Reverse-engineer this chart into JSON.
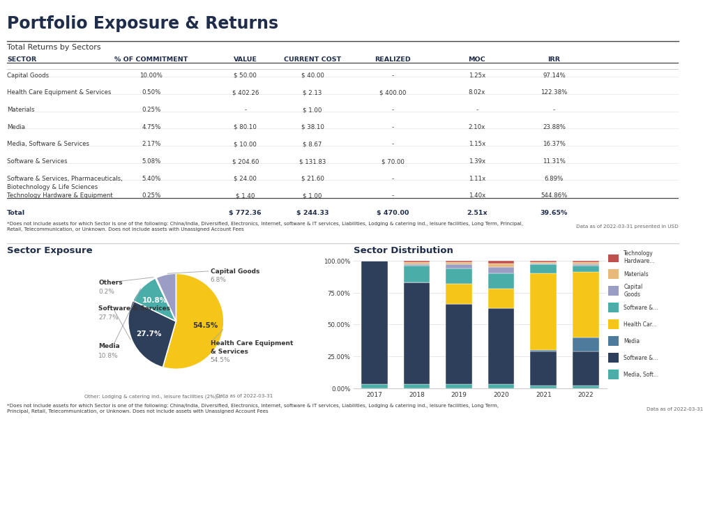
{
  "title": "Portfolio Exposure & Returns",
  "table_subtitle": "Total Returns by Sectors",
  "table_headers": [
    "SECTOR",
    "% OF COMMITMENT",
    "VALUE",
    "CURRENT COST",
    "REALIZED",
    "MOC",
    "IRR"
  ],
  "table_rows": [
    [
      "Capital Goods",
      "10.00%",
      "$ 50.00",
      "$ 40.00",
      "-",
      "1.25x",
      "97.14%"
    ],
    [
      "Health Care Equipment & Services",
      "0.50%",
      "$ 402.26",
      "$ 2.13",
      "$ 400.00",
      "8.02x",
      "122.38%"
    ],
    [
      "Materials",
      "0.25%",
      "-",
      "$ 1.00",
      "-",
      "-",
      "-"
    ],
    [
      "Media",
      "4.75%",
      "$ 80.10",
      "$ 38.10",
      "-",
      "2.10x",
      "23.88%"
    ],
    [
      "Media, Software & Services",
      "2.17%",
      "$ 10.00",
      "$ 8.67",
      "-",
      "1.15x",
      "16.37%"
    ],
    [
      "Software & Services",
      "5.08%",
      "$ 204.60",
      "$ 131.83",
      "$ 70.00",
      "1.39x",
      "11.31%"
    ],
    [
      "Software & Services, Pharmaceuticals,\nBiotechnology & Life Sciences",
      "5.40%",
      "$ 24.00",
      "$ 21.60",
      "-",
      "1.11x",
      "6.89%"
    ],
    [
      "Technology Hardware & Equipment",
      "0.25%",
      "$ 1.40",
      "$ 1.00",
      "-",
      "1.40x",
      "544.86%"
    ]
  ],
  "table_total": [
    "Total",
    "",
    "$ 772.36",
    "$ 244.33",
    "$ 470.00",
    "2.51x",
    "39.65%"
  ],
  "table_note": "Data as of 2022-03-31 presented in USD",
  "footnote1": "*Does not include assets for which Sector is one of the following: China/India, Diversified, Electronics, Internet, software & IT services, Liabilities, Lodging & catering ind., leisure facilities, Long Term, Principal,\nRetail, Telecommunication, or Unknown. Does not include assets with Unassigned Account Fees",
  "footnote2": "*Does not include assets for which Sector is one of the following: China/India, Diversified, Electronics, Internet, software & IT services, Liabilities, Lodging & catering ind., leisure facilities, Long Term,\nPrincipal, Retail, Telecommunication, or Unknown. Does not include assets with Unassigned Account Fees",
  "pie_title": "Sector Exposure",
  "pie_values": [
    54.5,
    27.7,
    10.8,
    0.3,
    6.8
  ],
  "pie_colors": [
    "#F5C518",
    "#2E3F5C",
    "#4AADA8",
    "#AAAAAA",
    "#9B9EC4"
  ],
  "pie_note": "Data as of 2022-03-31",
  "pie_other_note": "Other: Lodging & catering ind., leisure facilities (2%),c ...",
  "bar_title": "Sector Distribution",
  "bar_years": [
    "2017",
    "2018",
    "2019",
    "2020",
    "2021",
    "2022"
  ],
  "bar_segments": [
    {
      "label": "Media, Soft...",
      "color": "#4AADA8",
      "values": [
        3.0,
        3.0,
        3.0,
        3.0,
        2.0,
        2.0
      ]
    },
    {
      "label": "Software &...",
      "color": "#2E3F5C",
      "values": [
        97.0,
        80.0,
        63.0,
        60.0,
        27.0,
        27.0
      ]
    },
    {
      "label": "Media",
      "color": "#4E7A9B",
      "values": [
        0.0,
        0.0,
        0.0,
        0.0,
        1.0,
        11.0
      ]
    },
    {
      "label": "Health Car...",
      "color": "#F5C518",
      "values": [
        0.0,
        0.0,
        16.0,
        15.0,
        60.0,
        51.0
      ]
    },
    {
      "label": "Software &...",
      "color": "#4AADA8",
      "values": [
        0.0,
        13.0,
        12.0,
        12.0,
        7.0,
        5.0
      ]
    },
    {
      "label": "Capital\nGoods",
      "color": "#9B9EC4",
      "values": [
        0.0,
        1.0,
        3.0,
        5.0,
        1.0,
        1.0
      ]
    },
    {
      "label": "Materials",
      "color": "#E8B97A",
      "values": [
        0.0,
        2.0,
        2.0,
        3.0,
        1.0,
        2.0
      ]
    },
    {
      "label": "Technology\nHardware...",
      "color": "#C0504D",
      "values": [
        0.0,
        1.0,
        1.0,
        2.0,
        1.0,
        1.0
      ]
    }
  ],
  "bar_note": "Data as of 2022-03-31",
  "accent_color": "#2E3F5C",
  "bg_color": "#FFFFFF",
  "header_text_color": "#1F2D4A",
  "text_color": "#333333",
  "gray_text": "#888888"
}
